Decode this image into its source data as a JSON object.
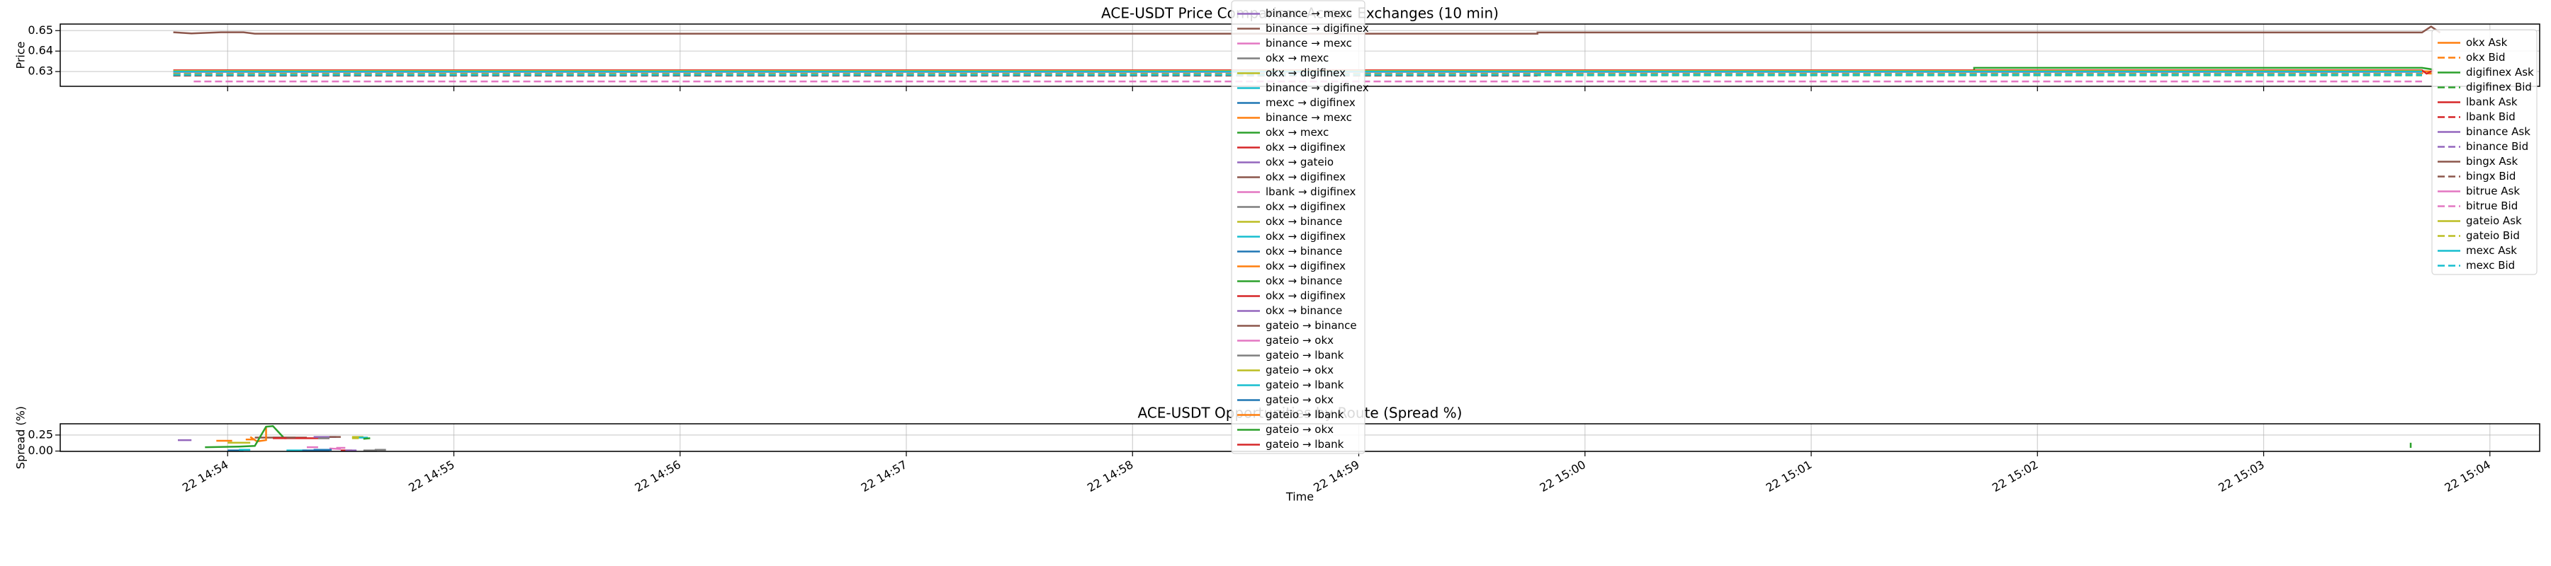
{
  "chart_data": [
    {
      "type": "line",
      "title": "ACE-USDT Price Comparison Across Exchanges (10 min)",
      "ylabel": "Price",
      "xlim": [
        53.26,
        64.22
      ],
      "xticks": [
        54,
        55,
        56,
        57,
        58,
        59,
        60,
        61,
        62,
        63,
        64
      ],
      "ylim": [
        0.6228,
        0.6532
      ],
      "yticks": [
        0.63,
        0.64,
        0.65
      ],
      "grid": true,
      "legend": "upper right",
      "series": [
        {
          "name": "okx Ask",
          "color": "#ff7f0e",
          "linestyle": "solid",
          "x": [
            53.76,
            63.7,
            63.75
          ],
          "values": [
            0.6302,
            0.6302,
            0.63
          ]
        },
        {
          "name": "okx Bid",
          "color": "#ff7f0e",
          "linestyle": "dashed",
          "x": [
            53.76,
            63.7,
            63.75
          ],
          "values": [
            0.6292,
            0.6292,
            0.629
          ]
        },
        {
          "name": "digifinex Ask",
          "color": "#2ca02c",
          "linestyle": "solid",
          "x": [
            53.76,
            61.72,
            61.72,
            63.7,
            63.75
          ],
          "values": [
            0.6304,
            0.6304,
            0.6318,
            0.6318,
            0.631
          ]
        },
        {
          "name": "digifinex Bid",
          "color": "#2ca02c",
          "linestyle": "dashed",
          "x": [
            53.76,
            63.7
          ],
          "values": [
            0.6282,
            0.6282
          ]
        },
        {
          "name": "lbank Ask",
          "color": "#d62728",
          "linestyle": "solid",
          "x": [
            53.76,
            63.7,
            63.72,
            63.75
          ],
          "values": [
            0.6306,
            0.6306,
            0.629,
            0.6306
          ]
        },
        {
          "name": "lbank Bid",
          "color": "#d62728",
          "linestyle": "dashed",
          "x": [
            53.76,
            63.7
          ],
          "values": [
            0.6296,
            0.6296
          ]
        },
        {
          "name": "binance Ask",
          "color": "#9467bd",
          "linestyle": "solid",
          "x": [
            53.76,
            63.7
          ],
          "values": [
            0.6301,
            0.6301
          ]
        },
        {
          "name": "binance Bid",
          "color": "#9467bd",
          "linestyle": "dashed",
          "x": [
            53.76,
            63.7
          ],
          "values": [
            0.6291,
            0.6291
          ]
        },
        {
          "name": "bingx Ask",
          "color": "#8c564b",
          "linestyle": "solid",
          "x": [
            53.76,
            53.84,
            53.97,
            54.07,
            54.12,
            59.79,
            59.79,
            63.7,
            63.74,
            63.78
          ],
          "values": [
            0.6492,
            0.6486,
            0.6492,
            0.6492,
            0.6485,
            0.6485,
            0.6491,
            0.6491,
            0.652,
            0.649
          ]
        },
        {
          "name": "bingx Bid",
          "color": "#8c564b",
          "linestyle": "dashed",
          "x": [
            53.76,
            59.79
          ],
          "values": [
            0.628,
            0.628
          ]
        },
        {
          "name": "bitrue Ask",
          "color": "#e377c2",
          "linestyle": "solid",
          "x": [
            53.76,
            63.7
          ],
          "values": [
            0.6298,
            0.6298
          ]
        },
        {
          "name": "bitrue Bid",
          "color": "#e377c2",
          "linestyle": "dashed",
          "x": [
            53.85,
            63.7
          ],
          "values": [
            0.6252,
            0.6252
          ]
        },
        {
          "name": "gateio Ask",
          "color": "#bcbd22",
          "linestyle": "solid",
          "x": [
            53.76,
            63.7
          ],
          "values": [
            0.6303,
            0.6303
          ]
        },
        {
          "name": "gateio Bid",
          "color": "#bcbd22",
          "linestyle": "dashed",
          "x": [
            53.76,
            63.7
          ],
          "values": [
            0.6288,
            0.6288
          ]
        },
        {
          "name": "mexc Ask",
          "color": "#17becf",
          "linestyle": "solid",
          "x": [
            53.76,
            63.7
          ],
          "values": [
            0.63,
            0.63
          ]
        },
        {
          "name": "mexc Bid",
          "color": "#17becf",
          "linestyle": "dashed",
          "x": [
            53.76,
            63.7
          ],
          "values": [
            0.6284,
            0.6284
          ]
        }
      ]
    },
    {
      "type": "line",
      "title": "ACE-USDT Opportunities by Route (Spread %)",
      "ylabel": "Spread (%)",
      "xlabel": "Time",
      "xlim": [
        53.26,
        64.22
      ],
      "xticks": [
        {
          "value": 54,
          "label": "22 14:54"
        },
        {
          "value": 55,
          "label": "22 14:55"
        },
        {
          "value": 56,
          "label": "22 14:56"
        },
        {
          "value": 57,
          "label": "22 14:57"
        },
        {
          "value": 58,
          "label": "22 14:58"
        },
        {
          "value": 59,
          "label": "22 14:59"
        },
        {
          "value": 60,
          "label": "22 15:00"
        },
        {
          "value": 61,
          "label": "22 15:01"
        },
        {
          "value": 62,
          "label": "22 15:02"
        },
        {
          "value": 63,
          "label": "22 15:03"
        },
        {
          "value": 64,
          "label": "22 15:04"
        }
      ],
      "ylim": [
        -0.005,
        0.425
      ],
      "yticks": [
        {
          "value": 0,
          "label": "0.00"
        },
        0.25
      ],
      "grid": true,
      "legend": "upper center",
      "series": [
        {
          "name": "binance → mexc",
          "color": "#9467bd",
          "x": [
            53.78,
            53.84
          ],
          "values": [
            0.17,
            0.17
          ]
        },
        {
          "name": "binance → digifinex",
          "color": "#8c564b",
          "x": [
            54.12,
            54.35
          ],
          "values": [
            0.21,
            0.21
          ]
        },
        {
          "name": "binance → mexc",
          "color": "#e377c2",
          "x": [
            54.45,
            54.5
          ],
          "values": [
            0.04,
            0.03
          ]
        },
        {
          "name": "okx → mexc",
          "color": "#7f7f7f",
          "x": [
            54.6,
            54.66
          ],
          "values": [
            0.01,
            0.01
          ]
        },
        {
          "name": "okx → digifinex",
          "color": "#bcbd22",
          "x": [
            54.0,
            54.1
          ],
          "values": [
            0.13,
            0.13
          ]
        },
        {
          "name": "binance → digifinex",
          "color": "#17becf",
          "x": [
            54.26,
            54.35
          ],
          "values": [
            0.01,
            0.01
          ]
        },
        {
          "name": "mexc → digifinex",
          "color": "#1f77b4",
          "x": [
            54.33,
            54.45
          ],
          "values": [
            0.01,
            0.01
          ]
        },
        {
          "name": "binance → mexc",
          "color": "#ff7f0e",
          "x": [
            54.1,
            54.13,
            54.17,
            54.17
          ],
          "values": [
            0.22,
            0.15,
            0.17,
            0.37
          ]
        },
        {
          "name": "okx → mexc",
          "color": "#2ca02c",
          "x": [
            53.9,
            54.05,
            54.12,
            54.17,
            54.2,
            54.25
          ],
          "values": [
            0.06,
            0.07,
            0.08,
            0.38,
            0.39,
            0.2
          ]
        },
        {
          "name": "okx → digifinex",
          "color": "#d62728",
          "x": [
            54.25,
            54.45
          ],
          "values": [
            0.2,
            0.2
          ]
        },
        {
          "name": "okx → gateio",
          "color": "#9467bd",
          "x": [
            54.38,
            54.48
          ],
          "values": [
            0.22,
            0.22
          ]
        },
        {
          "name": "okx → digifinex",
          "color": "#8c564b",
          "x": [
            54.45,
            54.5
          ],
          "values": [
            0.22,
            0.22
          ]
        },
        {
          "name": "lbank → digifinex",
          "color": "#e377c2",
          "x": [
            54.48,
            54.52
          ],
          "values": [
            0.05,
            0.05
          ]
        },
        {
          "name": "okx → digifinex",
          "color": "#7f7f7f",
          "x": [
            54.65,
            54.7
          ],
          "values": [
            0.02,
            0.02
          ]
        },
        {
          "name": "okx → binance",
          "color": "#bcbd22",
          "x": [
            54.55,
            54.6
          ],
          "values": [
            0.22,
            0.22
          ]
        },
        {
          "name": "okx → digifinex",
          "color": "#17becf",
          "x": [
            54.58,
            54.62
          ],
          "values": [
            0.21,
            0.21
          ]
        },
        {
          "name": "okx → binance",
          "color": "#1f77b4",
          "x": [
            54.0,
            54.07
          ],
          "values": [
            0.01,
            0.01
          ]
        },
        {
          "name": "okx → digifinex",
          "color": "#ff7f0e",
          "x": [
            54.08,
            54.12
          ],
          "values": [
            0.18,
            0.18
          ]
        },
        {
          "name": "okx → binance",
          "color": "#2ca02c",
          "x": [
            54.6,
            54.63
          ],
          "values": [
            0.19,
            0.2
          ]
        },
        {
          "name": "okx → digifinex",
          "color": "#d62728",
          "x": [
            54.5,
            54.55
          ],
          "values": [
            0.01,
            0.01
          ]
        },
        {
          "name": "okx → binance",
          "color": "#9467bd",
          "x": [
            54.52,
            54.57
          ],
          "values": [
            0.01,
            0.01
          ]
        },
        {
          "name": "gateio → binance",
          "color": "#8c564b",
          "x": [
            54.2,
            54.3
          ],
          "values": [
            0.21,
            0.21
          ]
        },
        {
          "name": "gateio → okx",
          "color": "#e377c2",
          "x": [
            54.35,
            54.4
          ],
          "values": [
            0.06,
            0.06
          ]
        },
        {
          "name": "gateio → lbank",
          "color": "#7f7f7f",
          "x": [
            54.4,
            54.45
          ],
          "values": [
            0.2,
            0.2
          ]
        },
        {
          "name": "gateio → okx",
          "color": "#bcbd22",
          "x": [
            54.55,
            54.58
          ],
          "values": [
            0.2,
            0.2
          ]
        },
        {
          "name": "gateio → lbank",
          "color": "#17becf",
          "x": [
            54.05,
            54.1
          ],
          "values": [
            0.02,
            0.02
          ]
        },
        {
          "name": "gateio → okx",
          "color": "#1f77b4",
          "x": [
            54.38,
            54.46
          ],
          "values": [
            0.02,
            0.02
          ]
        },
        {
          "name": "gateio → lbank",
          "color": "#ff7f0e",
          "x": [
            53.95,
            54.02
          ],
          "values": [
            0.16,
            0.16
          ]
        },
        {
          "name": "gateio → okx",
          "color": "#2ca02c",
          "x": [
            63.65,
            63.65
          ],
          "values": [
            0.05,
            0.13
          ]
        },
        {
          "name": "gateio → lbank",
          "color": "#d62728",
          "x": [
            54.2,
            54.26
          ],
          "values": [
            0.2,
            0.2
          ]
        }
      ]
    }
  ]
}
